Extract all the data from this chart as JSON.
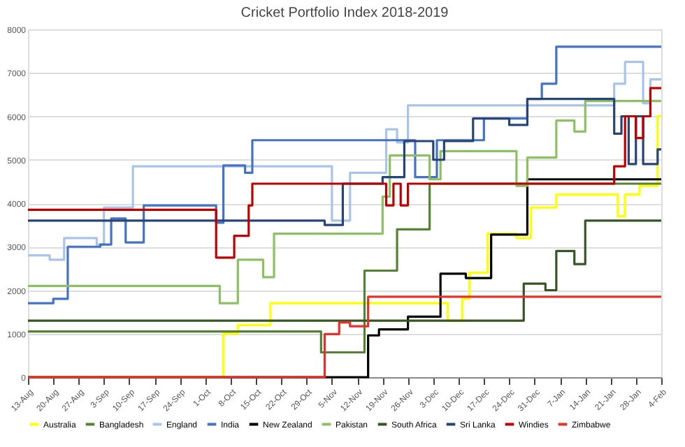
{
  "chart_data": {
    "type": "step",
    "title": "Cricket Portfolio Index  2018-2019",
    "xlim": [
      "2018-08-13",
      "2019-02-04"
    ],
    "xticks": [
      {
        "value": "2018-08-13",
        "label": "13-Aug"
      },
      {
        "value": "2018-08-20",
        "label": "20-Aug"
      },
      {
        "value": "2018-08-27",
        "label": "27-Aug"
      },
      {
        "value": "2018-09-03",
        "label": "3-Sep"
      },
      {
        "value": "2018-09-10",
        "label": "10-Sep"
      },
      {
        "value": "2018-09-17",
        "label": "17-Sep"
      },
      {
        "value": "2018-09-24",
        "label": "24-Sep"
      },
      {
        "value": "2018-10-01",
        "label": "1-Oct"
      },
      {
        "value": "2018-10-08",
        "label": "8-Oct"
      },
      {
        "value": "2018-10-15",
        "label": "15-Oct"
      },
      {
        "value": "2018-10-22",
        "label": "22-Oct"
      },
      {
        "value": "2018-10-29",
        "label": "29-Oct"
      },
      {
        "value": "2018-11-05",
        "label": "5-Nov"
      },
      {
        "value": "2018-11-12",
        "label": "12-Nov"
      },
      {
        "value": "2018-11-19",
        "label": "19-Nov"
      },
      {
        "value": "2018-11-26",
        "label": "26-Nov"
      },
      {
        "value": "2018-12-03",
        "label": "3-Dec"
      },
      {
        "value": "2018-12-10",
        "label": "10-Dec"
      },
      {
        "value": "2018-12-17",
        "label": "17-Dec"
      },
      {
        "value": "2018-12-24",
        "label": "24-Dec"
      },
      {
        "value": "2018-12-31",
        "label": "31-Dec"
      },
      {
        "value": "2019-01-07",
        "label": "7-Jan"
      },
      {
        "value": "2019-01-14",
        "label": "14-Jan"
      },
      {
        "value": "2019-01-21",
        "label": "21-Jan"
      },
      {
        "value": "2019-01-28",
        "label": "28-Jan"
      },
      {
        "value": "2019-02-04",
        "label": "4-Feb"
      }
    ],
    "ylim": [
      0,
      8000
    ],
    "yticks": [
      0,
      1000,
      2000,
      3000,
      4000,
      5000,
      6000,
      7000,
      8000
    ],
    "grid": "y",
    "legend": "bottom",
    "marker": "none",
    "line_style": "solid",
    "series": [
      {
        "name": "Australia",
        "color": "#ffff00",
        "x": [
          "2018-08-13",
          "2018-10-06",
          "2018-10-10",
          "2018-10-19",
          "2018-12-07",
          "2018-12-11",
          "2018-12-13",
          "2018-12-18",
          "2018-12-26",
          "2018-12-30",
          "2019-01-06",
          "2019-01-23",
          "2019-01-25",
          "2019-01-29",
          "2019-02-03",
          "2019-02-04"
        ],
        "values": [
          0,
          1000,
          1200,
          1700,
          1300,
          1800,
          2400,
          3300,
          3200,
          3900,
          4200,
          3700,
          4200,
          4400,
          6000,
          6000
        ]
      },
      {
        "name": "Bangladesh",
        "color": "#548235",
        "x": [
          "2018-08-13",
          "2018-11-02",
          "2018-11-14",
          "2018-11-23",
          "2018-12-02",
          "2019-02-04"
        ],
        "values": [
          1050,
          570,
          2450,
          3400,
          4450,
          4450
        ]
      },
      {
        "name": "England",
        "color": "#a9c4eb",
        "x": [
          "2018-08-13",
          "2018-08-19",
          "2018-08-23",
          "2018-09-01",
          "2018-09-03",
          "2018-09-11",
          "2018-11-05",
          "2018-11-10",
          "2018-11-20",
          "2018-11-23",
          "2018-11-26",
          "2019-01-22",
          "2019-01-25",
          "2019-01-30",
          "2019-02-01",
          "2019-02-04"
        ],
        "values": [
          2800,
          2700,
          3200,
          3050,
          3900,
          4850,
          3600,
          4700,
          5700,
          5400,
          6250,
          6750,
          7250,
          6300,
          6850,
          6850
        ]
      },
      {
        "name": "India",
        "color": "#4472c4",
        "x": [
          "2018-08-13",
          "2018-08-20",
          "2018-08-24",
          "2018-09-02",
          "2018-09-05",
          "2018-09-09",
          "2018-09-14",
          "2018-10-04",
          "2018-10-06",
          "2018-10-12",
          "2018-10-14",
          "2018-11-28",
          "2018-12-04",
          "2018-12-17",
          "2018-12-29",
          "2019-01-02",
          "2019-01-06",
          "2019-02-04"
        ],
        "values": [
          1700,
          1800,
          3000,
          3050,
          3650,
          3100,
          3950,
          3550,
          4870,
          4700,
          5450,
          4600,
          5450,
          5950,
          6400,
          6750,
          7600,
          7600
        ]
      },
      {
        "name": "New Zealand",
        "color": "#000000",
        "x": [
          "2018-08-13",
          "2018-11-15",
          "2018-11-18",
          "2018-11-26",
          "2018-12-05",
          "2018-12-12",
          "2018-12-19",
          "2018-12-29",
          "2019-02-04"
        ],
        "values": [
          0,
          960,
          1100,
          1390,
          2380,
          2280,
          3280,
          4550,
          4550
        ]
      },
      {
        "name": "Pakistan",
        "color": "#8cc063",
        "x": [
          "2018-08-13",
          "2018-10-05",
          "2018-10-10",
          "2018-10-17",
          "2018-10-20",
          "2018-11-19",
          "2018-11-21",
          "2018-12-02",
          "2018-12-05",
          "2018-12-26",
          "2018-12-29",
          "2019-01-06",
          "2019-01-11",
          "2019-01-14",
          "2019-02-04"
        ],
        "values": [
          2100,
          1700,
          2700,
          2300,
          3300,
          4150,
          5100,
          4550,
          5200,
          4400,
          5050,
          5900,
          5650,
          6350,
          6350
        ]
      },
      {
        "name": "South Africa",
        "color": "#375623",
        "x": [
          "2018-08-13",
          "2018-12-28",
          "2019-01-03",
          "2019-01-06",
          "2019-01-11",
          "2019-01-14",
          "2019-02-04"
        ],
        "values": [
          1300,
          2150,
          2000,
          2900,
          2600,
          3600,
          3600
        ]
      },
      {
        "name": "Sri Lanka",
        "color": "#264478",
        "x": [
          "2018-08-13",
          "2018-11-03",
          "2018-11-08",
          "2018-11-19",
          "2018-11-25",
          "2018-12-03",
          "2018-12-06",
          "2018-12-14",
          "2018-12-24",
          "2018-12-29",
          "2019-01-22",
          "2019-01-24",
          "2019-01-26",
          "2019-01-28",
          "2019-01-30",
          "2019-02-03",
          "2019-02-04"
        ],
        "values": [
          3600,
          3500,
          4450,
          4600,
          5430,
          5000,
          5430,
          5950,
          5800,
          6400,
          5600,
          6000,
          4900,
          6000,
          4900,
          5240,
          5240
        ]
      },
      {
        "name": "Windies",
        "color": "#c00000",
        "x": [
          "2018-08-13",
          "2018-10-04",
          "2018-10-09",
          "2018-10-13",
          "2018-10-14",
          "2018-11-20",
          "2018-11-22",
          "2018-11-24",
          "2018-11-26",
          "2019-01-22",
          "2019-01-25",
          "2019-01-28",
          "2019-01-30",
          "2019-02-01",
          "2019-02-04"
        ],
        "values": [
          3850,
          2750,
          3250,
          3950,
          4450,
          3950,
          4450,
          3950,
          4450,
          4850,
          6000,
          5500,
          6000,
          6650,
          6650
        ]
      },
      {
        "name": "Zimbabwe",
        "color": "#e8302a",
        "x": [
          "2018-08-13",
          "2018-11-03",
          "2018-11-07",
          "2018-11-10",
          "2018-11-15",
          "2019-02-04"
        ],
        "values": [
          0,
          990,
          1260,
          1170,
          1850,
          1850
        ]
      }
    ]
  }
}
